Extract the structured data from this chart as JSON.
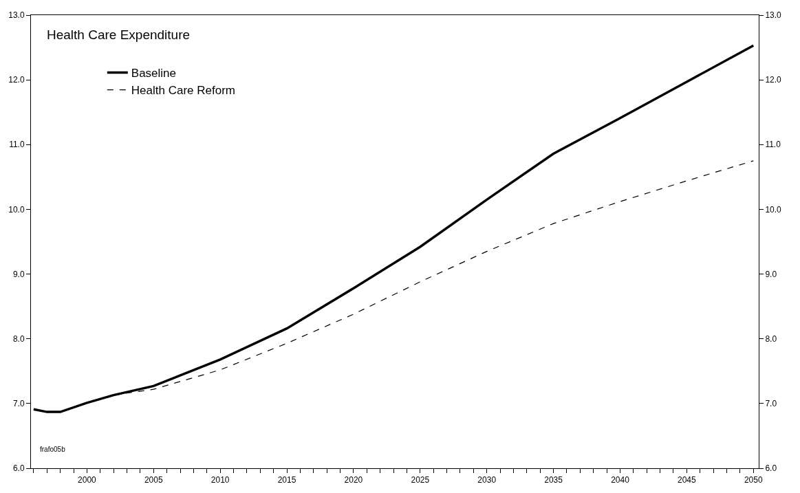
{
  "chart_data": {
    "type": "line",
    "title": "Health Care Expenditure",
    "x": [
      1996,
      1997,
      1998,
      2000,
      2002,
      2005,
      2010,
      2015,
      2020,
      2025,
      2030,
      2035,
      2040,
      2045,
      2050
    ],
    "series": [
      {
        "name": "Baseline",
        "color": "#000000",
        "line_style": "solid",
        "values": [
          6.91,
          6.87,
          6.87,
          7.01,
          7.13,
          7.27,
          7.68,
          8.16,
          8.78,
          9.42,
          10.15,
          10.86,
          11.41,
          11.97,
          12.53
        ]
      },
      {
        "name": "Health Care Reform",
        "color": "#000000",
        "line_style": "dashed",
        "x": [
          2002,
          2005,
          2010,
          2015,
          2020,
          2025,
          2030,
          2035,
          2040,
          2045,
          2050
        ],
        "values": [
          7.13,
          7.22,
          7.52,
          7.93,
          8.38,
          8.88,
          9.35,
          9.78,
          10.12,
          10.44,
          10.75
        ]
      }
    ],
    "xlim": [
      1995.8,
      2050.4
    ],
    "xticks": [
      {
        "value": 1996,
        "label": null
      },
      {
        "value": 1997,
        "label": null
      },
      {
        "value": 1998,
        "label": null
      },
      {
        "value": 1999,
        "label": null
      },
      2000,
      {
        "value": 2001,
        "label": null
      },
      {
        "value": 2002,
        "label": null
      },
      {
        "value": 2003,
        "label": null
      },
      {
        "value": 2004,
        "label": null
      },
      2005,
      {
        "value": 2006,
        "label": null
      },
      {
        "value": 2007,
        "label": null
      },
      {
        "value": 2008,
        "label": null
      },
      {
        "value": 2009,
        "label": null
      },
      2010,
      {
        "value": 2011,
        "label": null
      },
      {
        "value": 2012,
        "label": null
      },
      {
        "value": 2013,
        "label": null
      },
      {
        "value": 2014,
        "label": null
      },
      2015,
      {
        "value": 2016,
        "label": null
      },
      {
        "value": 2017,
        "label": null
      },
      {
        "value": 2018,
        "label": null
      },
      {
        "value": 2019,
        "label": null
      },
      2020,
      {
        "value": 2021,
        "label": null
      },
      {
        "value": 2022,
        "label": null
      },
      {
        "value": 2023,
        "label": null
      },
      {
        "value": 2024,
        "label": null
      },
      2025,
      {
        "value": 2026,
        "label": null
      },
      {
        "value": 2027,
        "label": null
      },
      {
        "value": 2028,
        "label": null
      },
      {
        "value": 2029,
        "label": null
      },
      2030,
      {
        "value": 2031,
        "label": null
      },
      {
        "value": 2032,
        "label": null
      },
      {
        "value": 2033,
        "label": null
      },
      {
        "value": 2034,
        "label": null
      },
      2035,
      {
        "value": 2036,
        "label": null
      },
      {
        "value": 2037,
        "label": null
      },
      {
        "value": 2038,
        "label": null
      },
      {
        "value": 2039,
        "label": null
      },
      2040,
      {
        "value": 2041,
        "label": null
      },
      {
        "value": 2042,
        "label": null
      },
      {
        "value": 2043,
        "label": null
      },
      {
        "value": 2044,
        "label": null
      },
      2045,
      {
        "value": 2046,
        "label": null
      },
      {
        "value": 2047,
        "label": null
      },
      {
        "value": 2048,
        "label": null
      },
      {
        "value": 2049,
        "label": null
      },
      2050
    ],
    "ylim": [
      6.0,
      13.0
    ],
    "yticks": [
      {
        "value": 6,
        "label": "6.0"
      },
      {
        "value": 7,
        "label": "7.0"
      },
      {
        "value": 8,
        "label": "8.0"
      },
      {
        "value": 9,
        "label": "9.0"
      },
      {
        "value": 10,
        "label": "10.0"
      },
      {
        "value": 11,
        "label": "11.0"
      },
      {
        "value": 12,
        "label": "12.0"
      },
      {
        "value": 13,
        "label": "13.0"
      }
    ],
    "y2lim": [
      6.0,
      13.0
    ],
    "y2ticks": [
      {
        "value": 6,
        "label": "6.0"
      },
      {
        "value": 7,
        "label": "7.0"
      },
      {
        "value": 8,
        "label": "8.0"
      },
      {
        "value": 9,
        "label": "9.0"
      },
      {
        "value": 10,
        "label": "10.0"
      },
      {
        "value": 11,
        "label": "11.0"
      },
      {
        "value": 12,
        "label": "12.0"
      },
      {
        "value": 13,
        "label": "13.0"
      }
    ],
    "annotations": [
      "frafo05b"
    ],
    "legend": "top left",
    "marker": "none"
  }
}
